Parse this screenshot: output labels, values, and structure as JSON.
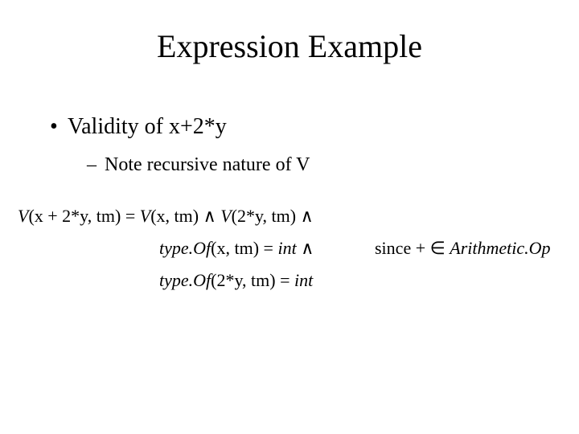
{
  "title": "Expression Example",
  "bullets": {
    "level1": {
      "marker": "•",
      "text": "Validity of x+2*y"
    },
    "level2": {
      "marker": "–",
      "text": "Note recursive nature of V"
    }
  },
  "math": {
    "line1": {
      "lhs_func": "V",
      "lhs_args": "(x + 2*y, tm)",
      "eq": " = ",
      "r1_func": "V",
      "r1_args": "(x, tm)",
      "and1": " ∧ ",
      "r2_func": "V",
      "r2_args": "(2*y, tm)",
      "and2": " ∧"
    },
    "line2": {
      "func": "type.Of",
      "args": "(x, tm)",
      "eq": " = ",
      "val": "int",
      "and": " ∧"
    },
    "line3": {
      "func": "type.Of",
      "args": "(2*y, tm)",
      "eq": " = ",
      "val": "int"
    },
    "since": {
      "label": "since ",
      "op": "+",
      "in": " ∈ ",
      "set": "Arithmetic.Op"
    }
  },
  "style": {
    "background": "#ffffff",
    "text_color": "#000000",
    "font_family": "Times New Roman",
    "title_fontsize": 40,
    "bullet1_fontsize": 28,
    "bullet2_fontsize": 24,
    "math_fontsize": 22
  }
}
